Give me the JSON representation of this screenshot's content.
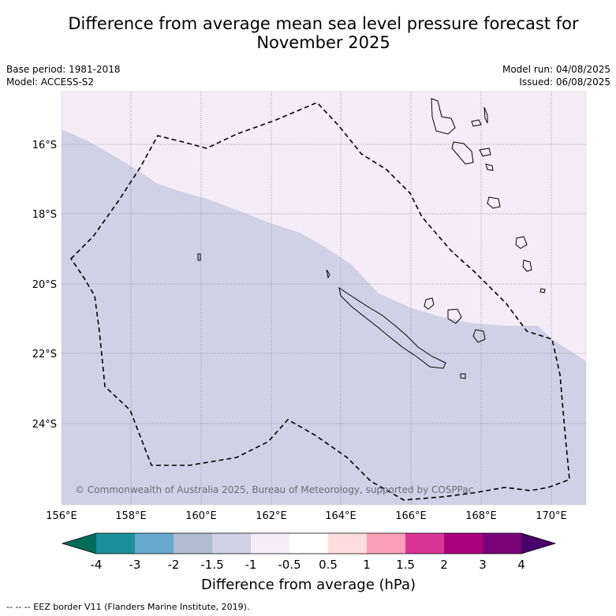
{
  "header": {
    "title_line1": "Difference from average mean sea level pressure forecast for",
    "title_line2": "November 2025",
    "base_period": "Base period: 1981-2018",
    "model": "Model: ACCESS-S2",
    "model_run": "Model run: 04/08/2025",
    "issued": "Issued: 06/08/2025"
  },
  "map": {
    "lat_labels": [
      "16°S",
      "18°S",
      "20°S",
      "22°S",
      "24°S"
    ],
    "lon_labels": [
      "156°E",
      "158°E",
      "160°E",
      "162°E",
      "164°E",
      "166°E",
      "168°E",
      "170°E"
    ],
    "copyright": "© Commonwealth of Australia 2025, Bureau of Meteorology, supported by COSPPac",
    "colors": {
      "minus1_to_minus1_5": "#d0d1e6",
      "minus0_5_to_minus1": "#f4ecf6",
      "eez_border": "#000000"
    }
  },
  "colorbar": {
    "tick_labels": [
      "-4",
      "-3",
      "-2",
      "-1.5",
      "-1",
      "-0.5",
      "0.5",
      "1",
      "1.5",
      "2",
      "3",
      "4"
    ],
    "colors": [
      "#016c59",
      "#1c9099",
      "#67a9cf",
      "#b1bcd1",
      "#d0d1e6",
      "#f4ecf6",
      "#ffffff",
      "#fedddd",
      "#fb9fb8",
      "#dd3497",
      "#ae017e",
      "#7a0177",
      "#49006a"
    ],
    "title": "Difference from average (hPa)"
  },
  "footer": {
    "legend": "--  --  -- EEZ border V11 (Flanders Marine Institute, 2019)."
  }
}
